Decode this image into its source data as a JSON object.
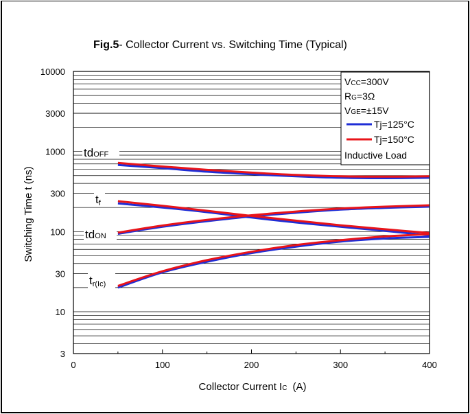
{
  "chart_data": {
    "type": "line",
    "title_bold": "Fig.5",
    "title_rest": "- Collector Current vs. Switching Time (Typical)",
    "xlabel": "Collector Current I",
    "xlabel_sub": "C",
    "xlabel_unit": "(A)",
    "ylabel": "Switching Time t  (ns)",
    "xlim": [
      0,
      400
    ],
    "ylim": [
      3,
      10000
    ],
    "yscale": "log",
    "x_ticks": [
      "0",
      "100",
      "200",
      "300",
      "400"
    ],
    "y_ticks": [
      "3",
      "10",
      "30",
      "100",
      "300",
      "1000",
      "3000",
      "10000"
    ],
    "grid": "horizontal",
    "conditions": {
      "vcc": {
        "main": "V",
        "sub": "CC",
        "rest": "=300V"
      },
      "rg": {
        "main": "R",
        "sub": "G",
        "rest": "=3Ω"
      },
      "vge": {
        "main": "V",
        "sub": "GE",
        "rest": "=±15V"
      },
      "load": "Inductive Load"
    },
    "legend": [
      {
        "label": "Tj=125°C",
        "color": "#1f2ed6"
      },
      {
        "label": "Tj=150°C",
        "color": "#e8141a"
      }
    ],
    "curve_labels": [
      {
        "main": "td",
        "sub": "OFF"
      },
      {
        "main": "t",
        "sub": "f"
      },
      {
        "main": "td",
        "sub": "ON"
      },
      {
        "main": "t",
        "sub": "r(Ic)"
      }
    ],
    "series": [
      {
        "curve": "td(off)",
        "temp": "125",
        "x": [
          50,
          100,
          150,
          200,
          250,
          300,
          350,
          400
        ],
        "y": [
          680,
          620,
          560,
          520,
          490,
          470,
          465,
          470
        ]
      },
      {
        "curve": "td(off)",
        "temp": "150",
        "x": [
          50,
          100,
          150,
          200,
          250,
          300,
          350,
          400
        ],
        "y": [
          720,
          650,
          590,
          545,
          510,
          490,
          485,
          490
        ]
      },
      {
        "curve": "tf",
        "temp": "125",
        "x": [
          50,
          100,
          150,
          200,
          250,
          300,
          350,
          400
        ],
        "y": [
          225,
          200,
          175,
          150,
          130,
          115,
          102,
          90
        ]
      },
      {
        "curve": "tf",
        "temp": "150",
        "x": [
          50,
          100,
          150,
          200,
          250,
          300,
          350,
          400
        ],
        "y": [
          240,
          210,
          182,
          157,
          137,
          120,
          107,
          96
        ]
      },
      {
        "curve": "td(on)",
        "temp": "125",
        "x": [
          50,
          100,
          150,
          200,
          250,
          300,
          350,
          400
        ],
        "y": [
          94,
          115,
          135,
          155,
          172,
          188,
          198,
          205
        ]
      },
      {
        "curve": "td(on)",
        "temp": "150",
        "x": [
          50,
          100,
          150,
          200,
          250,
          300,
          350,
          400
        ],
        "y": [
          97,
          119,
          140,
          160,
          178,
          194,
          205,
          213
        ]
      },
      {
        "curve": "tr(Ic)",
        "temp": "125",
        "x": [
          50,
          100,
          150,
          200,
          250,
          300,
          350,
          400
        ],
        "y": [
          20,
          31,
          42,
          54,
          65,
          75,
          82,
          86
        ]
      },
      {
        "curve": "tr(Ic)",
        "temp": "150",
        "x": [
          50,
          100,
          150,
          200,
          250,
          300,
          350,
          400
        ],
        "y": [
          21,
          32,
          44,
          56,
          68,
          78,
          87,
          93
        ]
      }
    ]
  }
}
